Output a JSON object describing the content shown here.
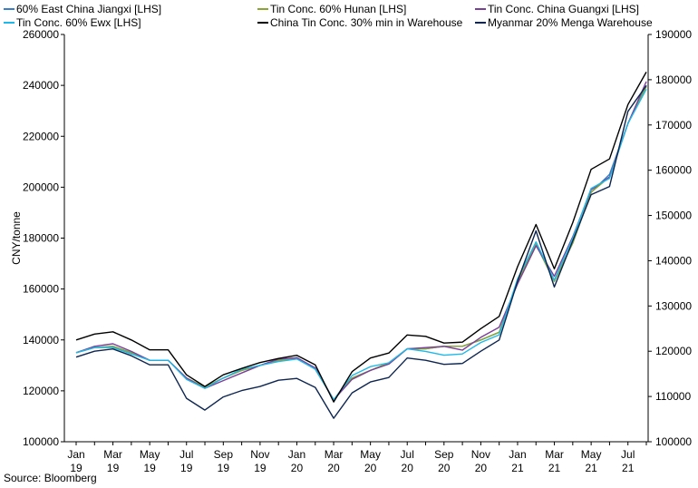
{
  "source": "Source: Bloomberg",
  "chart_data": {
    "type": "line",
    "ylabel": "CNY/tonne",
    "ylim_left": [
      100000,
      260000
    ],
    "ylim_right": [
      100000,
      190000
    ],
    "yticks_left": [
      "100000",
      "120000",
      "140000",
      "160000",
      "180000",
      "200000",
      "220000",
      "240000",
      "260000"
    ],
    "yticks_right": [
      "100000",
      "110000",
      "120000",
      "130000",
      "140000",
      "150000",
      "160000",
      "170000",
      "180000",
      "190000"
    ],
    "xtick_labels": [
      [
        "Jan",
        "19"
      ],
      [
        "Mar",
        "19"
      ],
      [
        "May",
        "19"
      ],
      [
        "Jul",
        "19"
      ],
      [
        "Sep",
        "19"
      ],
      [
        "Nov",
        "19"
      ],
      [
        "Jan",
        "20"
      ],
      [
        "Mar",
        "20"
      ],
      [
        "May",
        "20"
      ],
      [
        "Jul",
        "20"
      ],
      [
        "Sep",
        "20"
      ],
      [
        "Nov",
        "20"
      ],
      [
        "Jan",
        "21"
      ],
      [
        "Mar",
        "21"
      ],
      [
        "May",
        "21"
      ],
      [
        "Jul",
        "21"
      ]
    ],
    "x": [
      "2019-01",
      "2019-02",
      "2019-03",
      "2019-04",
      "2019-05",
      "2019-06",
      "2019-07",
      "2019-08",
      "2019-09",
      "2019-10",
      "2019-11",
      "2019-12",
      "2020-01",
      "2020-02",
      "2020-03",
      "2020-04",
      "2020-05",
      "2020-06",
      "2020-07",
      "2020-08",
      "2020-09",
      "2020-10",
      "2020-11",
      "2020-12",
      "2021-01",
      "2021-02",
      "2021-03",
      "2021-04",
      "2021-05",
      "2021-06",
      "2021-07",
      "2021-08"
    ],
    "grid": false,
    "legend": "top",
    "series": [
      {
        "name": "60% East China Jiangxi [LHS]",
        "color": "#3a7ec8",
        "axis": "left",
        "values": [
          135000,
          137000,
          137500,
          135000,
          132000,
          132000,
          125000,
          121500,
          125000,
          128000,
          130000,
          132000,
          133000,
          128500,
          116500,
          125000,
          128000,
          131000,
          136500,
          136500,
          137500,
          137500,
          140000,
          143000,
          163000,
          177500,
          163000,
          178000,
          198000,
          205000,
          225000,
          240000
        ]
      },
      {
        "name": "Tin Conc. 60% Hunan [LHS]",
        "color": "#8aa632",
        "axis": "left",
        "values": [
          135000,
          137000,
          137500,
          135000,
          132000,
          132000,
          125000,
          121500,
          125000,
          128000,
          130000,
          132000,
          133000,
          128500,
          116500,
          125000,
          128000,
          131000,
          136500,
          136500,
          137500,
          137500,
          140000,
          143000,
          163000,
          177500,
          163000,
          178000,
          198000,
          204000,
          225000,
          239500
        ]
      },
      {
        "name": "Tin Conc. China Guangxi [LHS]",
        "color": "#7b3f98",
        "axis": "left",
        "values": [
          135000,
          137500,
          138500,
          135500,
          132000,
          132000,
          125000,
          121000,
          124000,
          127000,
          130000,
          132500,
          133000,
          129000,
          116500,
          124500,
          128000,
          130500,
          136500,
          137000,
          137500,
          136000,
          141000,
          145000,
          162000,
          177000,
          165000,
          180500,
          199000,
          204000,
          225000,
          241500
        ]
      },
      {
        "name": "Tin Conc. 60% Ewx [LHS]",
        "color": "#1fb8e8",
        "axis": "left",
        "values": [
          135000,
          137000,
          137000,
          134500,
          132000,
          132000,
          124500,
          121000,
          125000,
          128500,
          130000,
          131500,
          132500,
          128500,
          116500,
          126000,
          129500,
          131000,
          136500,
          135500,
          134000,
          134500,
          139000,
          142000,
          164000,
          178500,
          163500,
          180000,
          199500,
          203500,
          225000,
          238500
        ]
      },
      {
        "name": "China Tin Conc. 30% min in Warehouse",
        "color": "#000000",
        "axis": "right",
        "values": [
          122500,
          123800,
          124300,
          122500,
          120300,
          120300,
          114800,
          112200,
          114800,
          116200,
          117500,
          118400,
          119100,
          117000,
          108800,
          115500,
          118500,
          119600,
          123600,
          123300,
          121800,
          122000,
          125000,
          127700,
          138700,
          148000,
          138200,
          148400,
          160200,
          162500,
          174500,
          181700
        ]
      },
      {
        "name": "Myanmar 20% Menga Warehouse",
        "color": "#0d2550",
        "axis": "right",
        "values": [
          118700,
          120000,
          120500,
          119000,
          117000,
          117000,
          109600,
          107000,
          109900,
          111300,
          112200,
          113600,
          114000,
          112000,
          105200,
          110800,
          113200,
          114200,
          118500,
          118000,
          117100,
          117300,
          120000,
          122500,
          135500,
          146600,
          134200,
          144400,
          154600,
          156400,
          173000,
          178700
        ]
      }
    ]
  }
}
